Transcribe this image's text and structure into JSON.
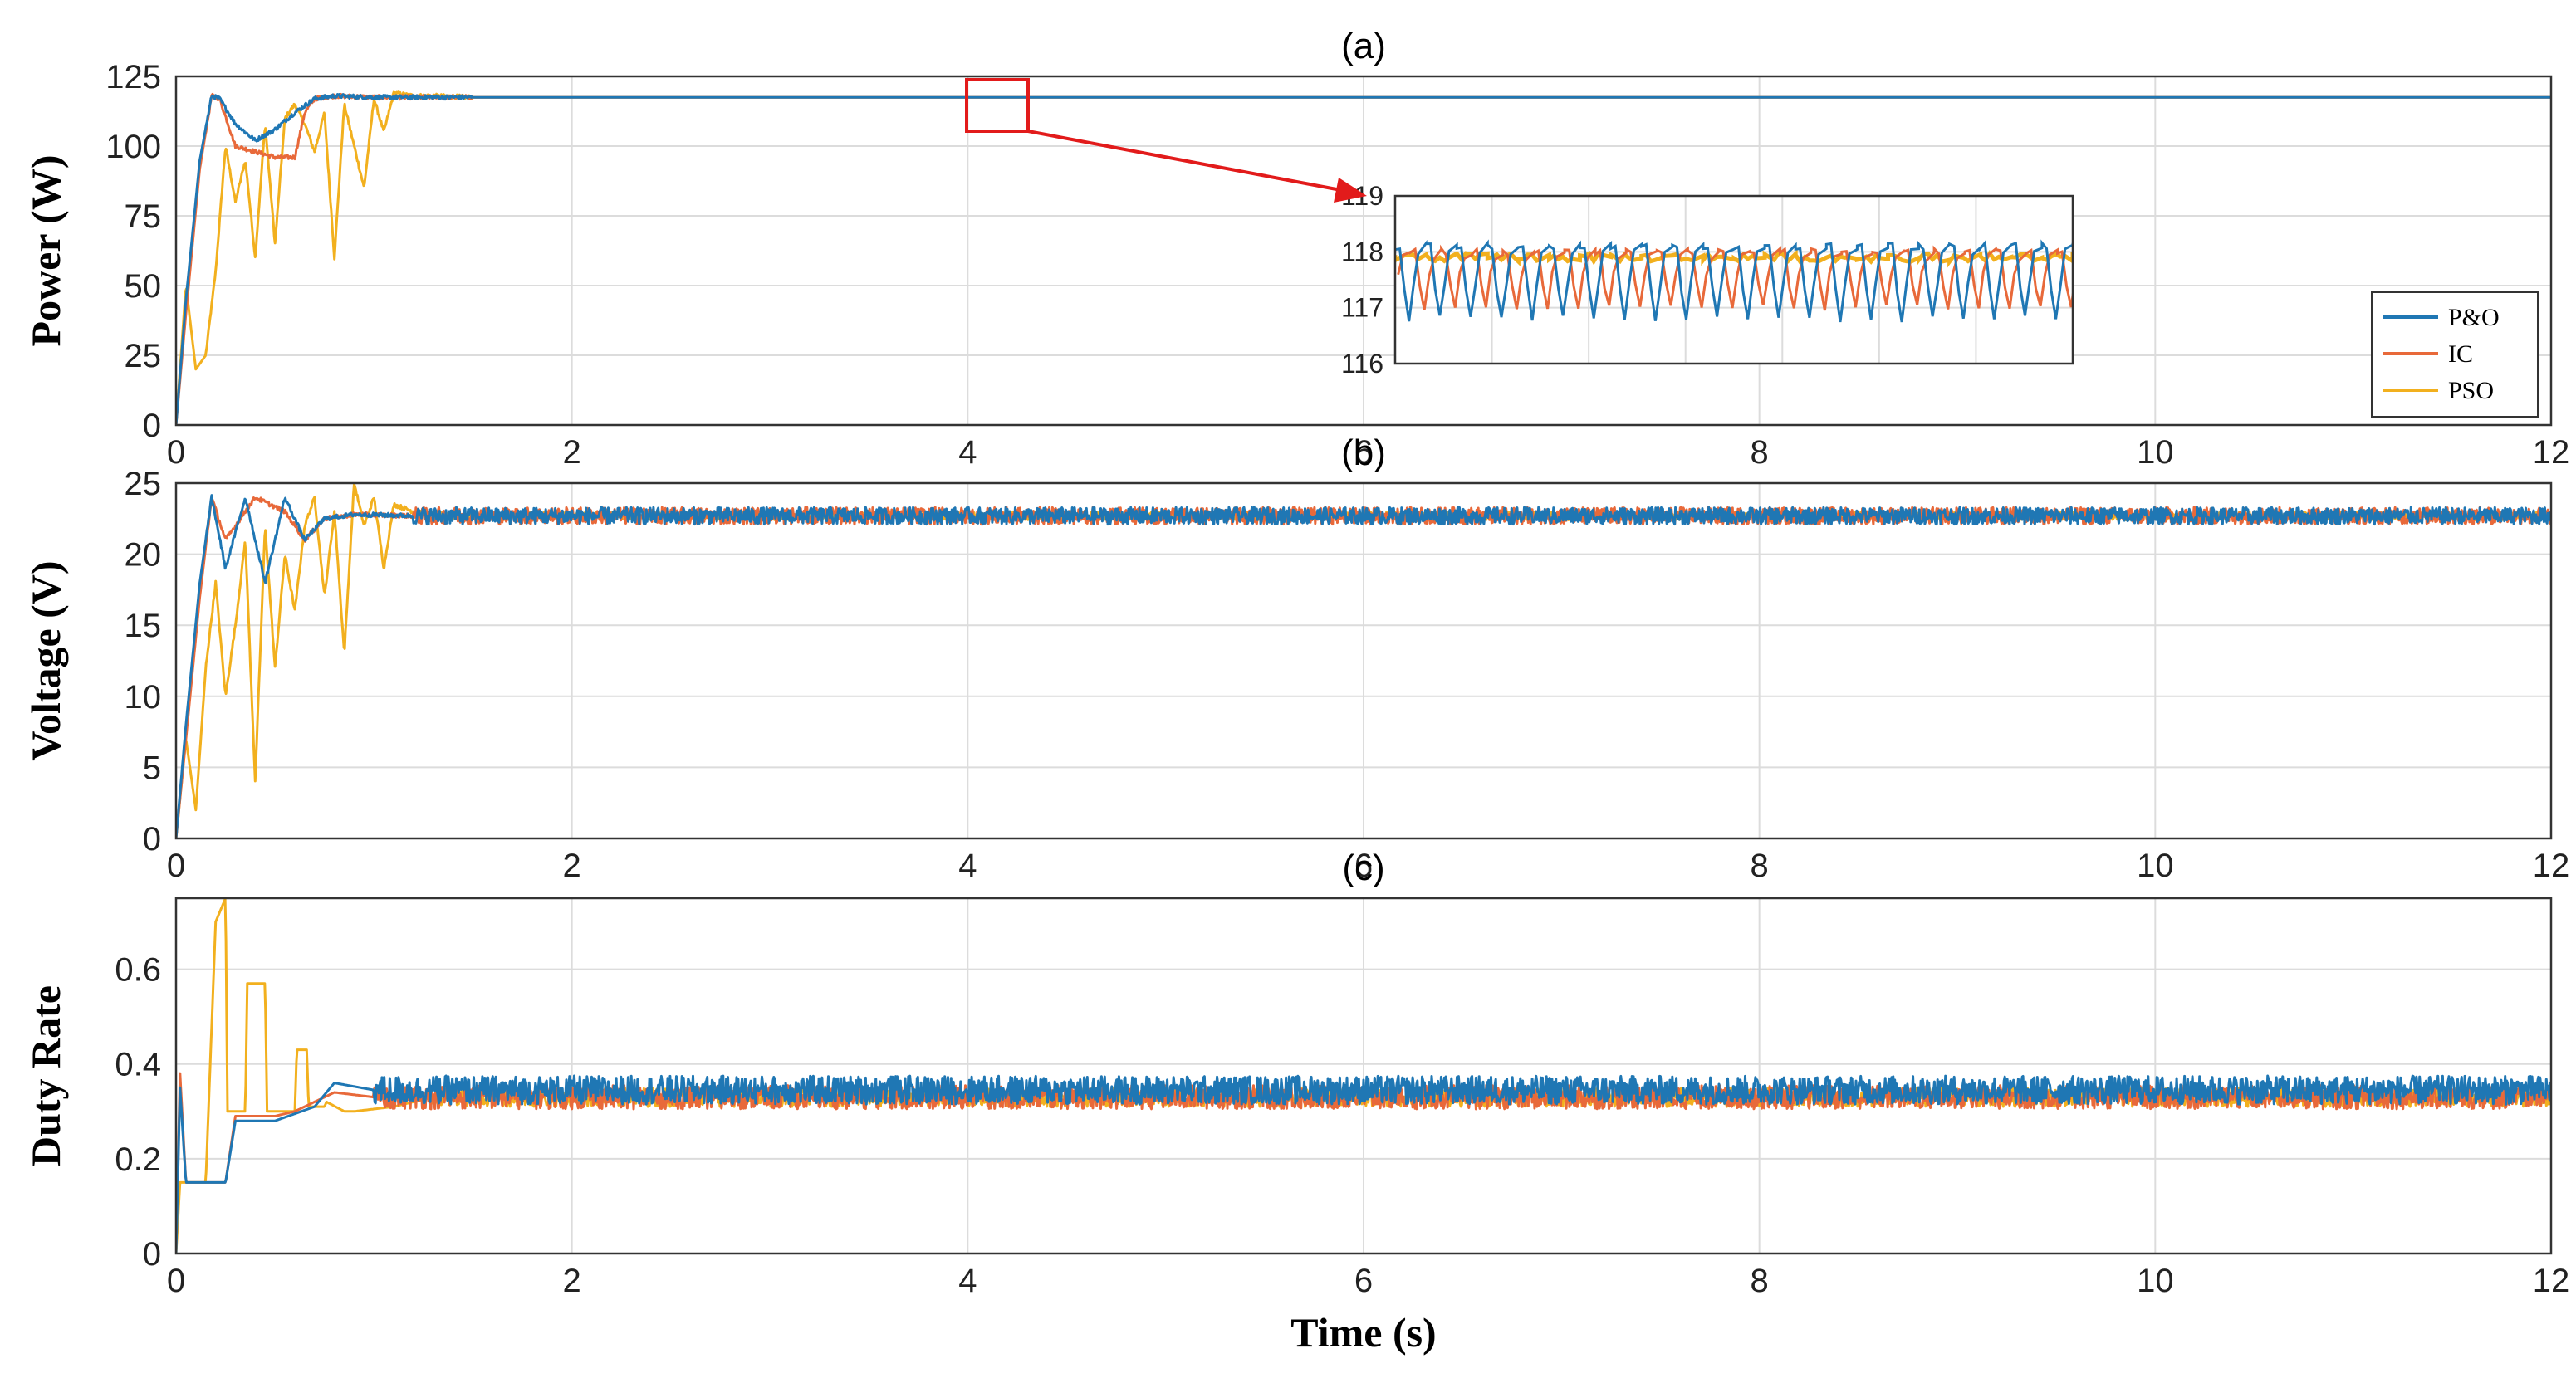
{
  "chart_data": [
    {
      "panel": "(a)",
      "type": "line",
      "title": "(a)",
      "ylabel": "Power (W)",
      "xlim": [
        0,
        12
      ],
      "ylim": [
        0,
        125
      ],
      "xticks": [
        "0",
        "2",
        "4",
        "6",
        "8",
        "10",
        "12"
      ],
      "yticks": [
        "0",
        "25",
        "50",
        "75",
        "100",
        "125"
      ],
      "grid": true,
      "legend_position": "right",
      "series": [
        {
          "name": "P&O",
          "color": "#1f77b4",
          "steady_state": 117.5,
          "x": [
            0,
            0.05,
            0.12,
            0.18,
            0.22,
            0.3,
            0.4,
            0.5,
            0.6,
            0.7,
            0.8,
            1.0,
            1.5,
            12
          ],
          "y": [
            0,
            45,
            95,
            118,
            117,
            108,
            102,
            106,
            112,
            117,
            118,
            117.5,
            117.5,
            117.5
          ]
        },
        {
          "name": "IC",
          "color": "#e8693a",
          "steady_state": 117.5,
          "x": [
            0,
            0.05,
            0.12,
            0.18,
            0.22,
            0.3,
            0.5,
            0.6,
            0.65,
            0.7,
            0.8,
            1.0,
            1.5,
            12
          ],
          "y": [
            0,
            40,
            92,
            118,
            117,
            100,
            96,
            96,
            112,
            117,
            118,
            117.5,
            117.5,
            117.5
          ]
        },
        {
          "name": "PSO",
          "color": "#f2b01e",
          "steady_state": 117.5,
          "x": [
            0,
            0.05,
            0.1,
            0.15,
            0.2,
            0.25,
            0.3,
            0.35,
            0.4,
            0.45,
            0.5,
            0.55,
            0.6,
            0.65,
            0.7,
            0.75,
            0.8,
            0.85,
            0.9,
            0.95,
            1.0,
            1.05,
            1.1,
            1.2,
            1.3,
            1.5,
            12
          ],
          "y": [
            0,
            50,
            20,
            25,
            55,
            100,
            80,
            95,
            60,
            108,
            65,
            110,
            115,
            108,
            98,
            112,
            60,
            115,
            100,
            85,
            117,
            105,
            119,
            118,
            118,
            117.5,
            117.5
          ]
        }
      ],
      "inset": {
        "ylim": [
          116,
          119
        ],
        "yticks": [
          "116",
          "117",
          "118",
          "119"
        ],
        "window": "Time ≈ 4.0–4.3 s, Power ≈ 110–125 W",
        "series": [
          {
            "name": "P&O",
            "mean": 117.4,
            "min": 116.8,
            "max": 118.1
          },
          {
            "name": "IC",
            "mean": 117.6,
            "min": 117.0,
            "max": 118.0
          },
          {
            "name": "PSO",
            "mean": 117.9,
            "min": 117.8,
            "max": 118.0
          }
        ]
      }
    },
    {
      "panel": "(b)",
      "type": "line",
      "title": "(b)",
      "ylabel": "Voltage (V)",
      "xlim": [
        0,
        12
      ],
      "ylim": [
        0,
        25
      ],
      "xticks": [
        "0",
        "2",
        "4",
        "6",
        "8",
        "10",
        "12"
      ],
      "yticks": [
        "0",
        "5",
        "10",
        "15",
        "20",
        "25"
      ],
      "grid": true,
      "series": [
        {
          "name": "P&O",
          "steady_state": 22.7,
          "ripple": 0.6,
          "x": [
            0,
            0.05,
            0.12,
            0.18,
            0.25,
            0.35,
            0.45,
            0.55,
            0.65,
            0.75,
            0.9,
            1.2,
            12
          ],
          "y": [
            0,
            8,
            18,
            24,
            19,
            24,
            18,
            24,
            21,
            22.5,
            22.8,
            22.7,
            22.7
          ]
        },
        {
          "name": "IC",
          "steady_state": 22.7,
          "ripple": 0.6,
          "x": [
            0,
            0.05,
            0.12,
            0.18,
            0.25,
            0.4,
            0.55,
            0.65,
            0.75,
            0.9,
            1.2,
            12
          ],
          "y": [
            0,
            7,
            17,
            24,
            21,
            24,
            23,
            21,
            22.5,
            22.8,
            22.7,
            22.7
          ]
        },
        {
          "name": "PSO",
          "steady_state": 22.7,
          "ripple": 0.3,
          "x": [
            0,
            0.05,
            0.1,
            0.15,
            0.2,
            0.25,
            0.3,
            0.35,
            0.4,
            0.45,
            0.5,
            0.55,
            0.6,
            0.65,
            0.7,
            0.75,
            0.8,
            0.85,
            0.9,
            0.95,
            1.0,
            1.05,
            1.1,
            1.2,
            1.4,
            12
          ],
          "y": [
            0,
            7,
            2,
            12,
            18,
            10,
            15,
            21,
            4,
            22,
            12,
            20,
            16,
            22,
            24,
            17,
            23,
            13,
            25,
            22,
            24,
            19,
            23.5,
            23,
            22.7,
            22.7
          ]
        }
      ]
    },
    {
      "panel": "(c)",
      "type": "line",
      "title": "(c)",
      "ylabel": "Duty Rate",
      "xlabel": "Time (s)",
      "xlim": [
        0,
        12
      ],
      "ylim": [
        0,
        0.75
      ],
      "xticks": [
        "0",
        "2",
        "4",
        "6",
        "8",
        "10",
        "12"
      ],
      "yticks": [
        "0",
        "0.2",
        "0.4",
        "0.6"
      ],
      "grid": true,
      "series": [
        {
          "name": "P&O",
          "steady_state": 0.345,
          "ripple": 0.03,
          "x": [
            0,
            0.02,
            0.05,
            0.25,
            0.3,
            0.5,
            0.7,
            0.8,
            1.0,
            12
          ],
          "y": [
            0,
            0.35,
            0.15,
            0.15,
            0.28,
            0.28,
            0.31,
            0.36,
            0.345,
            0.345
          ]
        },
        {
          "name": "IC",
          "steady_state": 0.33,
          "ripple": 0.025,
          "x": [
            0,
            0.02,
            0.05,
            0.25,
            0.3,
            0.5,
            0.6,
            0.7,
            0.8,
            1.0,
            12
          ],
          "y": [
            0,
            0.38,
            0.15,
            0.15,
            0.29,
            0.29,
            0.3,
            0.32,
            0.34,
            0.33,
            0.33
          ]
        },
        {
          "name": "PSO",
          "steady_state": 0.33,
          "ripple": 0.02,
          "x": [
            0,
            0.02,
            0.05,
            0.15,
            0.2,
            0.25,
            0.26,
            0.35,
            0.36,
            0.45,
            0.46,
            0.6,
            0.61,
            0.66,
            0.67,
            0.75,
            0.76,
            0.85,
            0.9,
            1.1,
            1.3,
            12
          ],
          "y": [
            0,
            0.15,
            0.15,
            0.15,
            0.7,
            0.75,
            0.3,
            0.3,
            0.57,
            0.57,
            0.3,
            0.3,
            0.43,
            0.43,
            0.31,
            0.31,
            0.32,
            0.3,
            0.3,
            0.31,
            0.33,
            0.33
          ]
        }
      ]
    }
  ],
  "legend": [
    {
      "label": "P&O",
      "color": "#1f77b4"
    },
    {
      "label": "IC",
      "color": "#e8693a"
    },
    {
      "label": "PSO",
      "color": "#f2b01e"
    }
  ]
}
